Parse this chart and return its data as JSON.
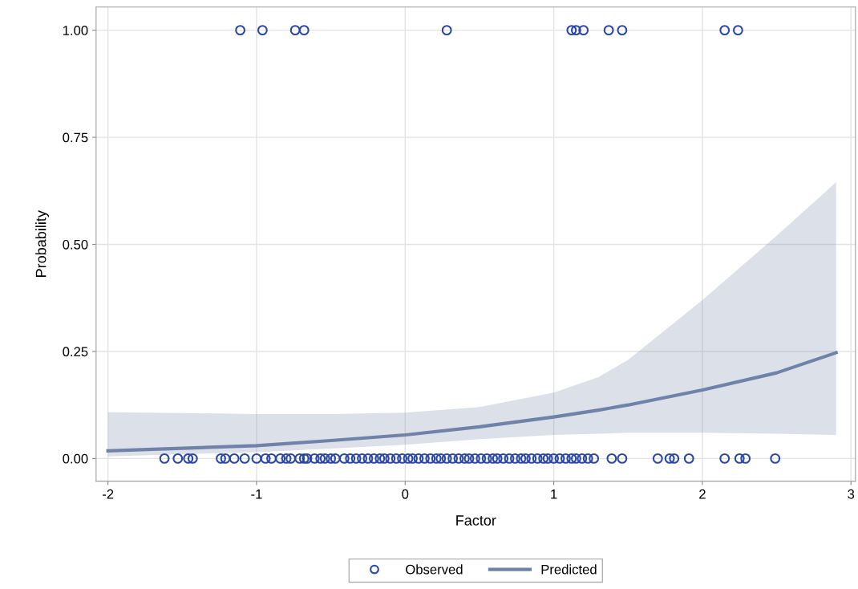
{
  "chart_data": {
    "type": "scatter",
    "xlabel": "Factor",
    "ylabel": "Probability",
    "xlim": [
      -2.08,
      3.03
    ],
    "ylim": [
      -0.053,
      1.054
    ],
    "xticks": [
      {
        "value": -2,
        "label": "-2"
      },
      {
        "value": -1,
        "label": "-1"
      },
      0,
      1,
      2,
      3
    ],
    "yticks": [
      {
        "value": 0,
        "label": "0.00"
      },
      {
        "value": 0.25,
        "label": "0.25"
      },
      {
        "value": 0.5,
        "label": "0.50"
      },
      {
        "value": 0.75,
        "label": "0.75"
      },
      {
        "value": 1,
        "label": "1.00"
      }
    ],
    "grid": true,
    "legend": "bottom",
    "series": [
      {
        "name": "Observed",
        "marker": "circle",
        "color": "#2a47a8",
        "x": [
          -1.11,
          -0.96,
          -0.74,
          -0.68,
          0.28,
          1.12,
          1.15,
          1.2,
          1.37,
          1.46,
          2.15,
          2.24,
          -1.62,
          -1.53,
          -1.46,
          -1.43,
          -1.24,
          -1.21,
          -1.15,
          -1.08,
          -1.0,
          -0.94,
          -0.9,
          -0.84,
          -0.8,
          -0.77,
          -0.71,
          -0.68,
          -0.66,
          -0.61,
          -0.57,
          -0.54,
          -0.5,
          -0.47,
          -0.41,
          -0.37,
          -0.33,
          -0.29,
          -0.25,
          -0.21,
          -0.17,
          -0.14,
          -0.1,
          -0.06,
          -0.02,
          0.02,
          0.05,
          0.09,
          0.13,
          0.17,
          0.21,
          0.24,
          0.28,
          0.32,
          0.36,
          0.4,
          0.43,
          0.47,
          0.51,
          0.55,
          0.59,
          0.62,
          0.66,
          0.7,
          0.74,
          0.78,
          0.81,
          0.85,
          0.89,
          0.93,
          0.96,
          1.0,
          1.04,
          1.08,
          1.12,
          1.15,
          1.19,
          1.23,
          1.27,
          1.39,
          1.46,
          1.7,
          1.78,
          1.81,
          1.91,
          2.15,
          2.25,
          2.29,
          2.49
        ],
        "values": [
          1,
          1,
          1,
          1,
          1,
          1,
          1,
          1,
          1,
          1,
          1,
          1,
          0,
          0,
          0,
          0,
          0,
          0,
          0,
          0,
          0,
          0,
          0,
          0,
          0,
          0,
          0,
          0,
          0,
          0,
          0,
          0,
          0,
          0,
          0,
          0,
          0,
          0,
          0,
          0,
          0,
          0,
          0,
          0,
          0,
          0,
          0,
          0,
          0,
          0,
          0,
          0,
          0,
          0,
          0,
          0,
          0,
          0,
          0,
          0,
          0,
          0,
          0,
          0,
          0,
          0,
          0,
          0,
          0,
          0,
          0,
          0,
          0,
          0,
          0,
          0,
          0,
          0,
          0,
          0,
          0,
          0,
          0,
          0,
          0,
          0,
          0,
          0,
          0
        ]
      },
      {
        "name": "Predicted",
        "type": "line",
        "marker": "none",
        "line_style": "solid",
        "color": "#6f83a8",
        "x": [
          -2,
          -1.5,
          -1,
          -0.5,
          0,
          0.5,
          1,
          1.3,
          1.5,
          2,
          2.5,
          2.9
        ],
        "values": [
          0.018,
          0.024,
          0.03,
          0.042,
          0.055,
          0.074,
          0.097,
          0.113,
          0.125,
          0.16,
          0.2,
          0.247
        ],
        "lower": [
          0.005,
          0.01,
          0.015,
          0.023,
          0.032,
          0.045,
          0.055,
          0.058,
          0.06,
          0.06,
          0.058,
          0.055
        ],
        "upper": [
          0.108,
          0.106,
          0.104,
          0.104,
          0.107,
          0.12,
          0.154,
          0.19,
          0.23,
          0.37,
          0.52,
          0.645
        ]
      }
    ]
  }
}
